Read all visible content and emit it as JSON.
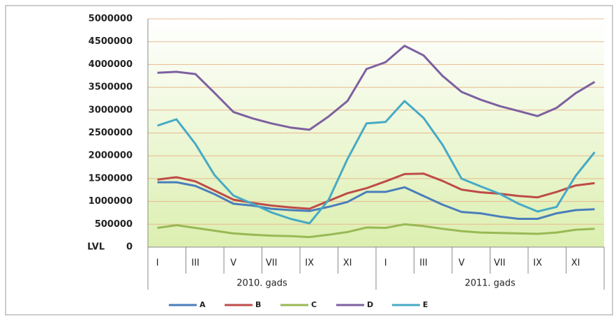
{
  "chart_data": {
    "type": "line",
    "y_label": "LVL",
    "categories": [
      "I",
      null,
      "III",
      null,
      "V",
      null,
      "VII",
      null,
      "IX",
      null,
      "XI",
      null,
      "I",
      null,
      "III",
      null,
      "V",
      null,
      "VII",
      null,
      "IX",
      null,
      "XI",
      null
    ],
    "x_groups": [
      "2010. gads",
      "2011. gads"
    ],
    "ylim": [
      0,
      5000000
    ],
    "yticks": [
      0,
      500000,
      1000000,
      1500000,
      2000000,
      2500000,
      3000000,
      3500000,
      4000000,
      4500000,
      5000000
    ],
    "grid": true,
    "legend": "bottom",
    "series": [
      {
        "name": "A",
        "color": "#4a7ebb",
        "values": [
          1420000,
          1420000,
          1340000,
          1160000,
          950000,
          910000,
          840000,
          810000,
          790000,
          880000,
          990000,
          1210000,
          1210000,
          1310000,
          1120000,
          930000,
          770000,
          740000,
          670000,
          620000,
          620000,
          740000,
          810000,
          830000
        ]
      },
      {
        "name": "B",
        "color": "#be4b48",
        "values": [
          1480000,
          1530000,
          1440000,
          1240000,
          1040000,
          970000,
          910000,
          870000,
          840000,
          1010000,
          1180000,
          1290000,
          1440000,
          1600000,
          1610000,
          1450000,
          1260000,
          1200000,
          1170000,
          1120000,
          1090000,
          1210000,
          1350000,
          1400000
        ]
      },
      {
        "name": "C",
        "color": "#98b954",
        "values": [
          420000,
          480000,
          420000,
          360000,
          300000,
          270000,
          250000,
          240000,
          220000,
          270000,
          330000,
          430000,
          420000,
          500000,
          460000,
          400000,
          350000,
          320000,
          310000,
          300000,
          290000,
          320000,
          380000,
          400000
        ]
      },
      {
        "name": "D",
        "color": "#7d60a0",
        "values": [
          3820000,
          3840000,
          3790000,
          3380000,
          2960000,
          2820000,
          2710000,
          2620000,
          2570000,
          2860000,
          3200000,
          3900000,
          4050000,
          4410000,
          4200000,
          3750000,
          3400000,
          3230000,
          3090000,
          2980000,
          2870000,
          3050000,
          3370000,
          3620000
        ]
      },
      {
        "name": "E",
        "color": "#46aac5",
        "values": [
          2660000,
          2800000,
          2260000,
          1580000,
          1130000,
          950000,
          760000,
          620000,
          520000,
          1030000,
          1930000,
          2710000,
          2740000,
          3200000,
          2830000,
          2240000,
          1500000,
          1330000,
          1170000,
          950000,
          780000,
          880000,
          1560000,
          2080000
        ]
      }
    ]
  }
}
